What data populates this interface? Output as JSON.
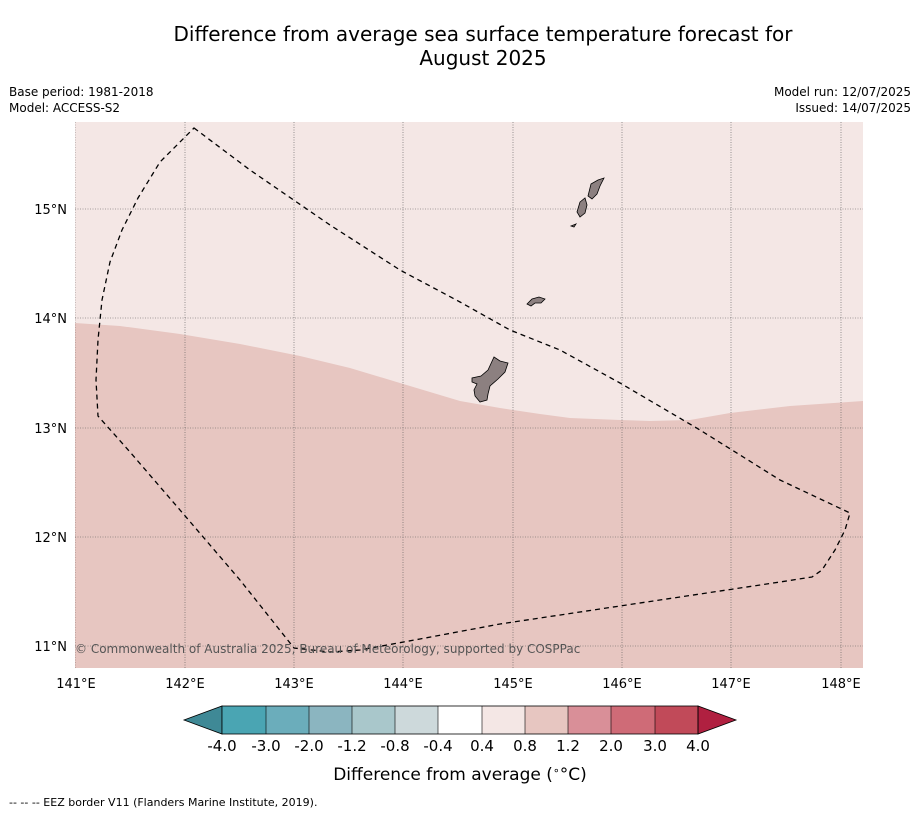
{
  "title": {
    "line1": "Difference from average sea surface temperature forecast for",
    "line2": "August 2025"
  },
  "info_left": {
    "base_period": "Base period: 1981-2018",
    "model": "Model: ACCESS-S2"
  },
  "info_right": {
    "model_run": "Model run: 12/07/2025",
    "issued": "Issued: 14/07/2025"
  },
  "map": {
    "copyright": "© Commonwealth of Australia 2025, Bureau of Meteorology, supported by COSPPac",
    "lon_labels": [
      "141°E",
      "142°E",
      "143°E",
      "144°E",
      "145°E",
      "146°E",
      "147°E",
      "148°E"
    ],
    "lat_labels": [
      "15°N",
      "14°N",
      "13°N",
      "12°N",
      "11°N"
    ],
    "colors": {
      "anomaly_0_4_to_0_8": "#f4e7e5",
      "anomaly_0_8_to_1_2": "#e7c6c1",
      "land": "#8c8080"
    }
  },
  "colorbar": {
    "label": "Difference from average (",
    "label_unit": "°C)",
    "ticks": [
      "-4.0",
      "-3.0",
      "-2.0",
      "-1.2",
      "-0.8",
      "-0.4",
      "0.4",
      "0.8",
      "1.2",
      "2.0",
      "3.0",
      "4.0"
    ],
    "colors": [
      "#3f8996",
      "#4aa5b3",
      "#6badbb",
      "#8bb5c0",
      "#a9c7cb",
      "#cdd9db",
      "#ffffff",
      "#f4e7e5",
      "#e7c6c1",
      "#d98f98",
      "#cf6b77",
      "#c14a59",
      "#b02040"
    ]
  },
  "footer": {
    "legend_text": "--  --  -- EEZ border V11 (Flanders Marine Institute, 2019)."
  }
}
